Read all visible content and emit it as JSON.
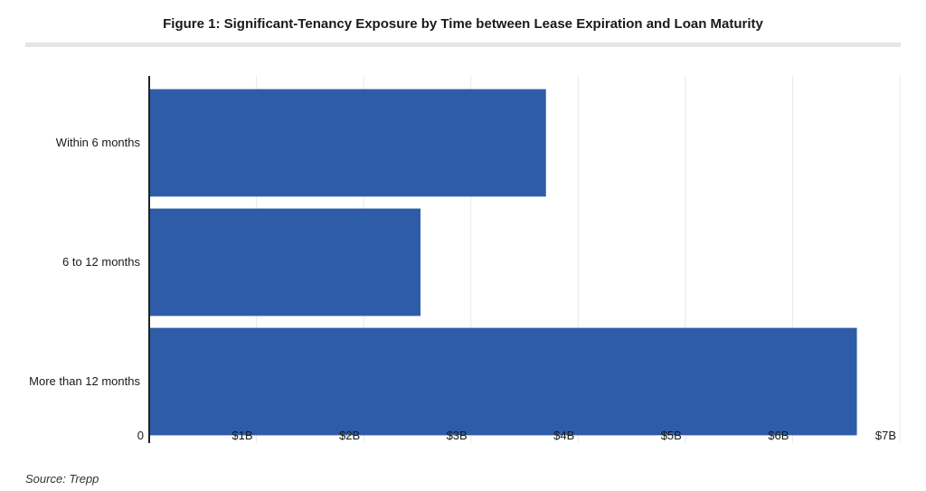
{
  "chart_data": {
    "type": "bar",
    "orientation": "horizontal",
    "title": "Figure 1: Significant-Tenancy Exposure by Time between Lease Expiration and Loan Maturity",
    "categories": [
      "Within 6 months",
      "6 to 12 months",
      "More than 12 months"
    ],
    "values": [
      3.7,
      2.53,
      6.6
    ],
    "value_unit": "billions USD",
    "xlim": [
      0,
      7
    ],
    "x_ticks": [
      0,
      1,
      2,
      3,
      4,
      5,
      6,
      7
    ],
    "x_tick_labels": [
      "0",
      "$1B",
      "$2B",
      "$3B",
      "$4B",
      "$5B",
      "$6B",
      "$7B"
    ],
    "xlabel": "",
    "ylabel": "",
    "grid": true,
    "legend": "none",
    "bar_color": "#2e5ca8",
    "grid_color": "#e8e8e8"
  },
  "source": "Source: Trepp"
}
